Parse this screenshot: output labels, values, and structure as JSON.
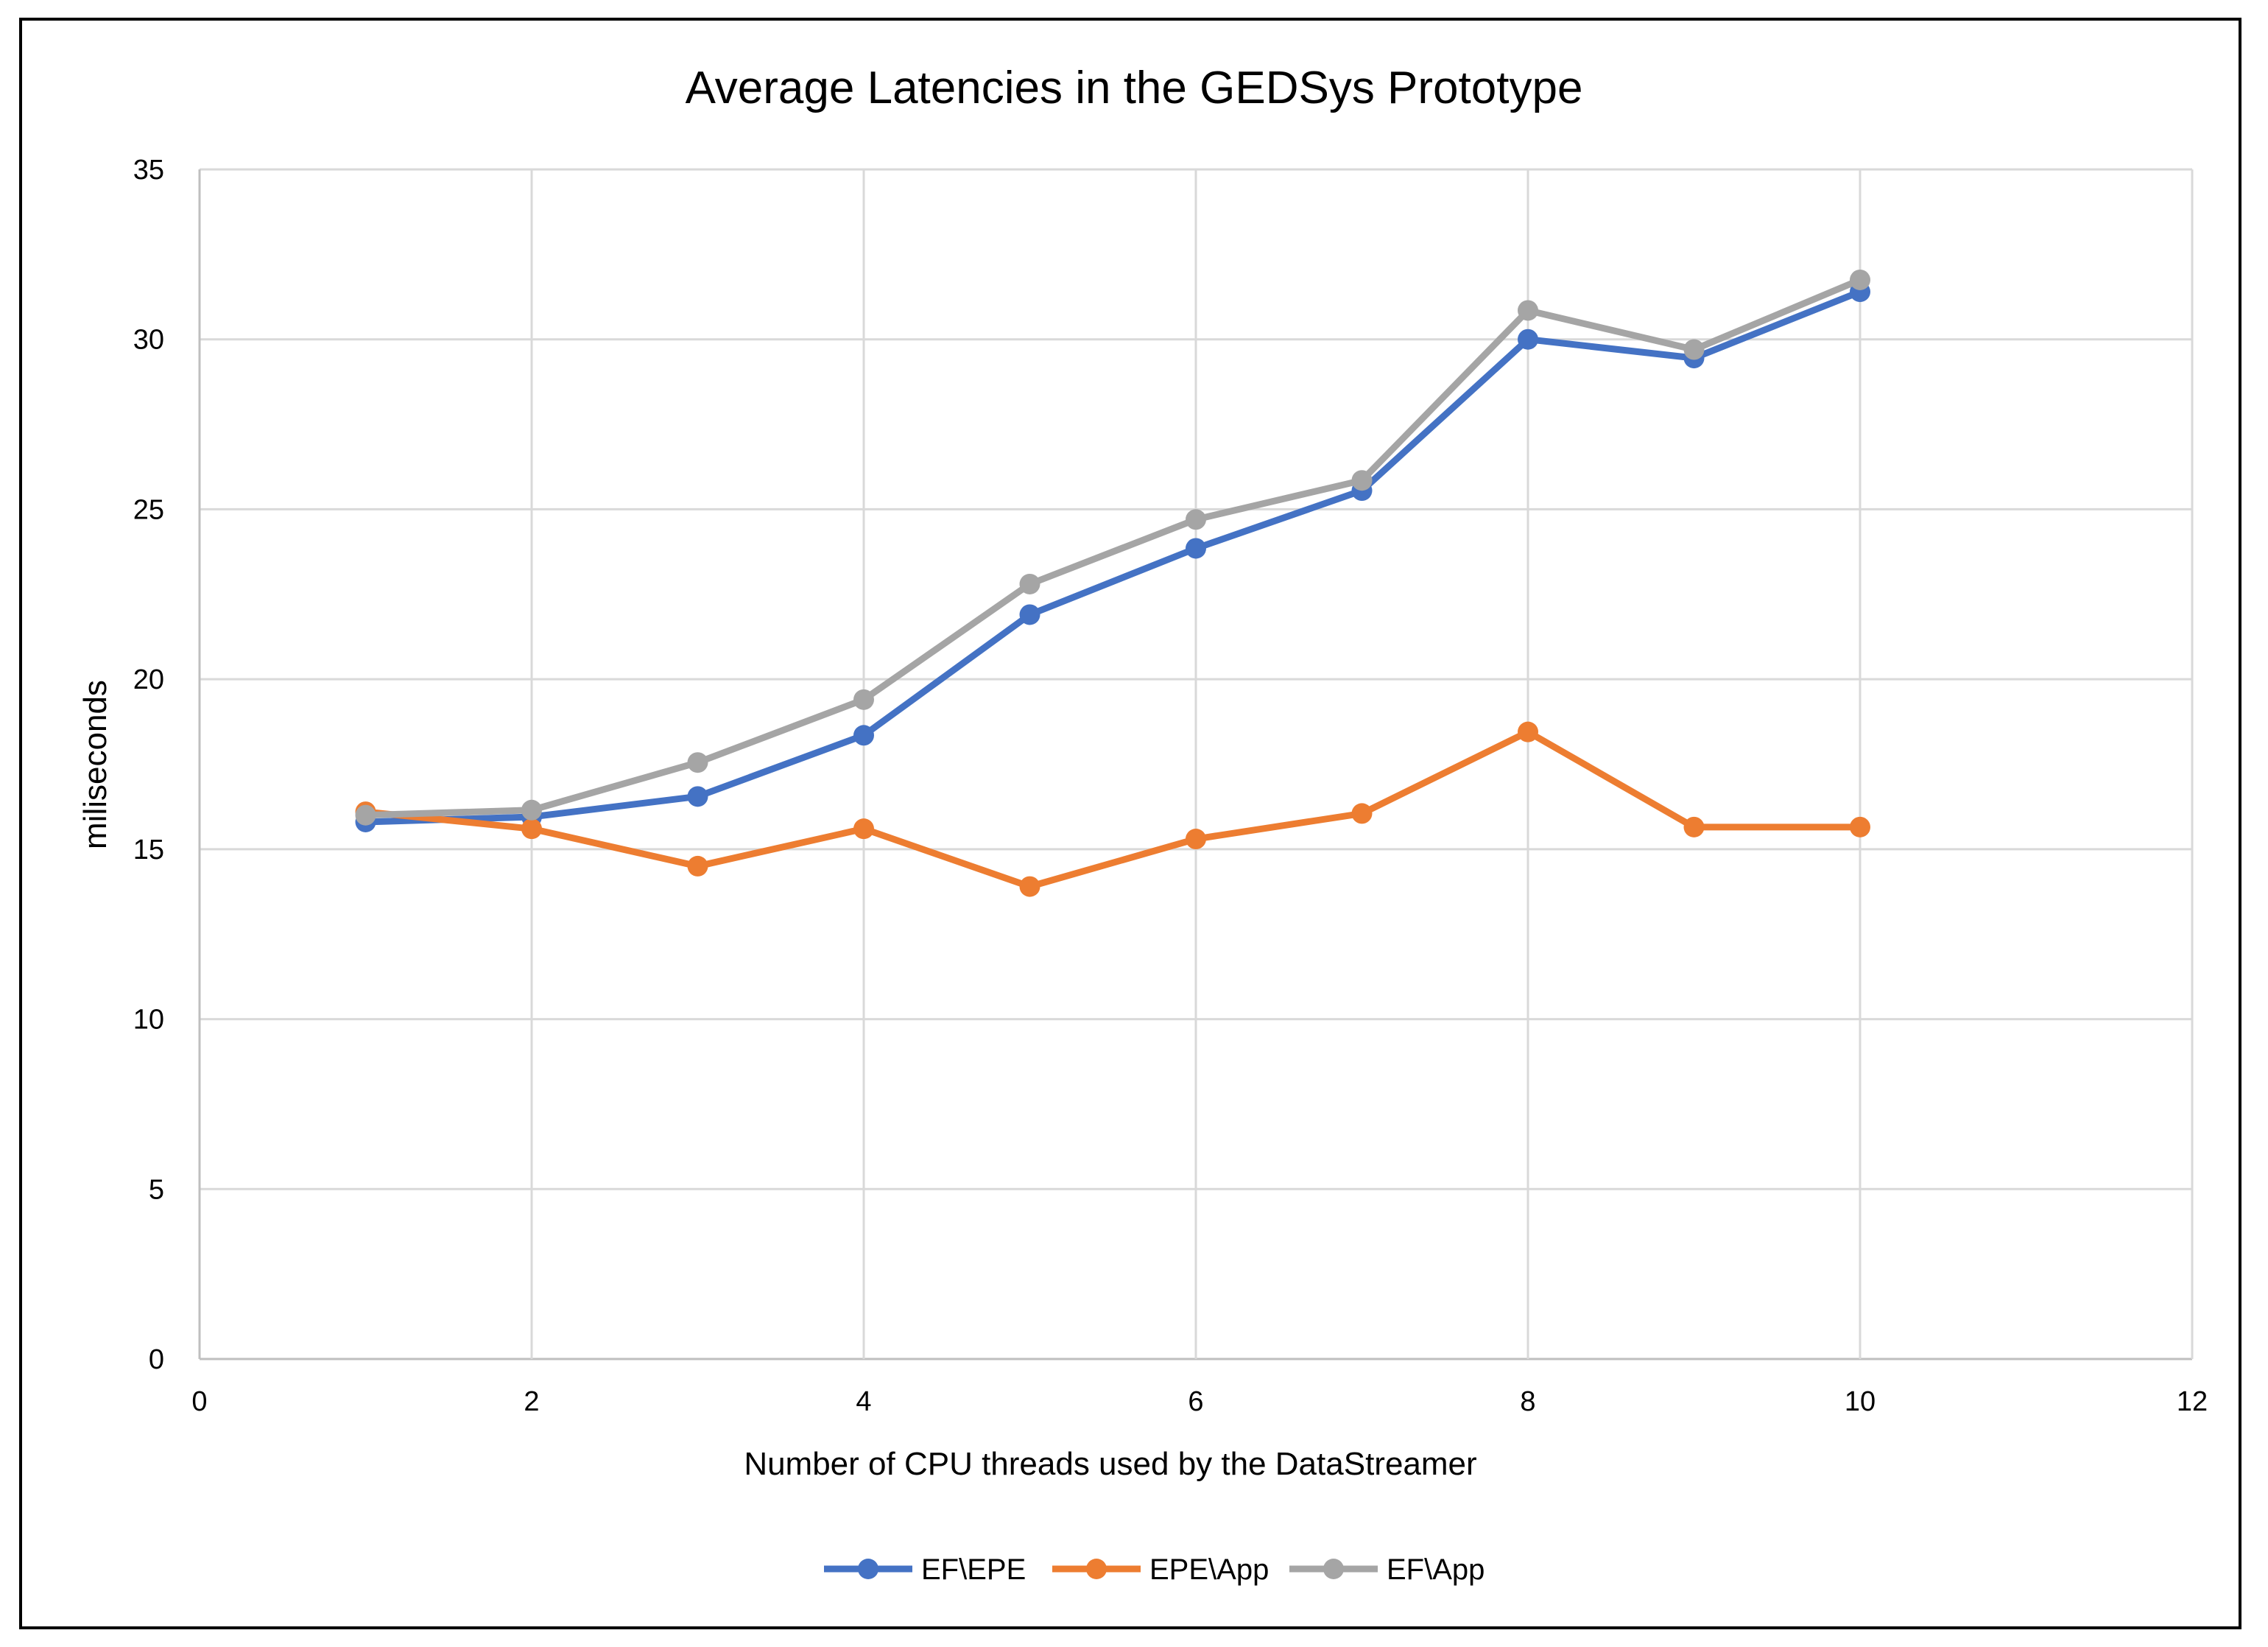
{
  "chart_data": {
    "type": "line",
    "title": "Average Latencies in the GEDSys Prototype",
    "xlabel": "Number of CPU threads  used by the DataStreamer",
    "ylabel": "miliseconds",
    "xlim": [
      0,
      12
    ],
    "ylim": [
      0,
      35
    ],
    "x_ticks": [
      0,
      2,
      4,
      6,
      8,
      10,
      12
    ],
    "y_ticks": [
      0,
      5,
      10,
      15,
      20,
      25,
      30,
      35
    ],
    "grid": true,
    "legend_position": "bottom",
    "x": [
      1,
      2,
      3,
      4,
      5,
      6,
      7,
      8,
      9,
      10
    ],
    "series": [
      {
        "name": "EF\\EPE",
        "color": "#4472C4",
        "values": [
          15.8,
          15.95,
          16.55,
          18.35,
          21.9,
          23.85,
          25.55,
          30.0,
          29.45,
          31.4
        ]
      },
      {
        "name": "EPE\\App",
        "color": "#ED7D31",
        "values": [
          16.1,
          15.6,
          14.5,
          15.6,
          13.9,
          15.3,
          16.05,
          18.45,
          15.65,
          15.65
        ]
      },
      {
        "name": "EF\\App",
        "color": "#A5A5A5",
        "values": [
          16.0,
          16.15,
          17.55,
          19.4,
          22.8,
          24.7,
          25.85,
          30.85,
          29.7,
          31.75
        ]
      }
    ]
  }
}
